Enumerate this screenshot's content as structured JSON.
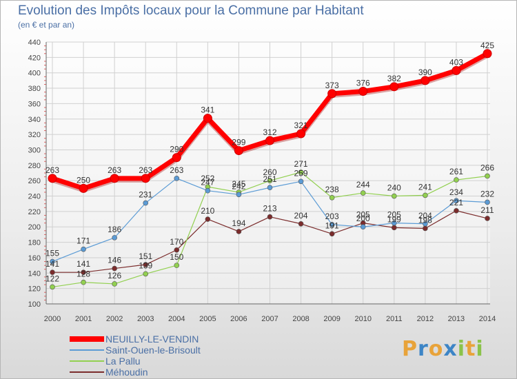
{
  "title": "Evolution des Impôts locaux pour la Commune par Habitant",
  "subtitle": "(en € et par an)",
  "logo": {
    "text": "Proxiti",
    "letters": [
      "P",
      "r",
      "o",
      "x",
      "i",
      "t",
      "i"
    ],
    "colors": [
      "#e8a33a",
      "#3d85c6",
      "#e8a33a",
      "#3d85c6",
      "#8bc34a",
      "#e8a33a",
      "#8bc34a"
    ]
  },
  "chart_data": {
    "type": "line",
    "categories": [
      "2000",
      "2001",
      "2002",
      "2003",
      "2004",
      "2005",
      "2006",
      "2007",
      "2008",
      "2009",
      "2010",
      "2011",
      "2012",
      "2013",
      "2014"
    ],
    "ylim": [
      100,
      440
    ],
    "yticks": [
      100,
      120,
      140,
      160,
      180,
      200,
      220,
      240,
      260,
      280,
      300,
      320,
      340,
      360,
      380,
      400,
      420,
      440
    ],
    "grid": true,
    "series": [
      {
        "name": "NEUILLY-LE-VENDIN",
        "color": "#ff0000",
        "values": [
          263,
          250,
          263,
          263,
          290,
          341,
          299,
          312,
          321,
          373,
          376,
          382,
          390,
          403,
          425
        ]
      },
      {
        "name": "Saint-Ouen-le-Brisoult",
        "color": "#5b9bd5",
        "values": [
          155,
          171,
          186,
          231,
          263,
          247,
          242,
          251,
          259,
          203,
          200,
          205,
          204,
          234,
          232
        ]
      },
      {
        "name": "La Pallu",
        "color": "#92d050",
        "values": [
          122,
          128,
          126,
          139,
          150,
          252,
          245,
          260,
          271,
          238,
          244,
          240,
          241,
          261,
          266
        ]
      },
      {
        "name": "Méhoudin",
        "color": "#7b2c2c",
        "values": [
          141,
          141,
          146,
          151,
          170,
          210,
          194,
          213,
          204,
          191,
          205,
          199,
          198,
          221,
          211
        ]
      }
    ]
  }
}
